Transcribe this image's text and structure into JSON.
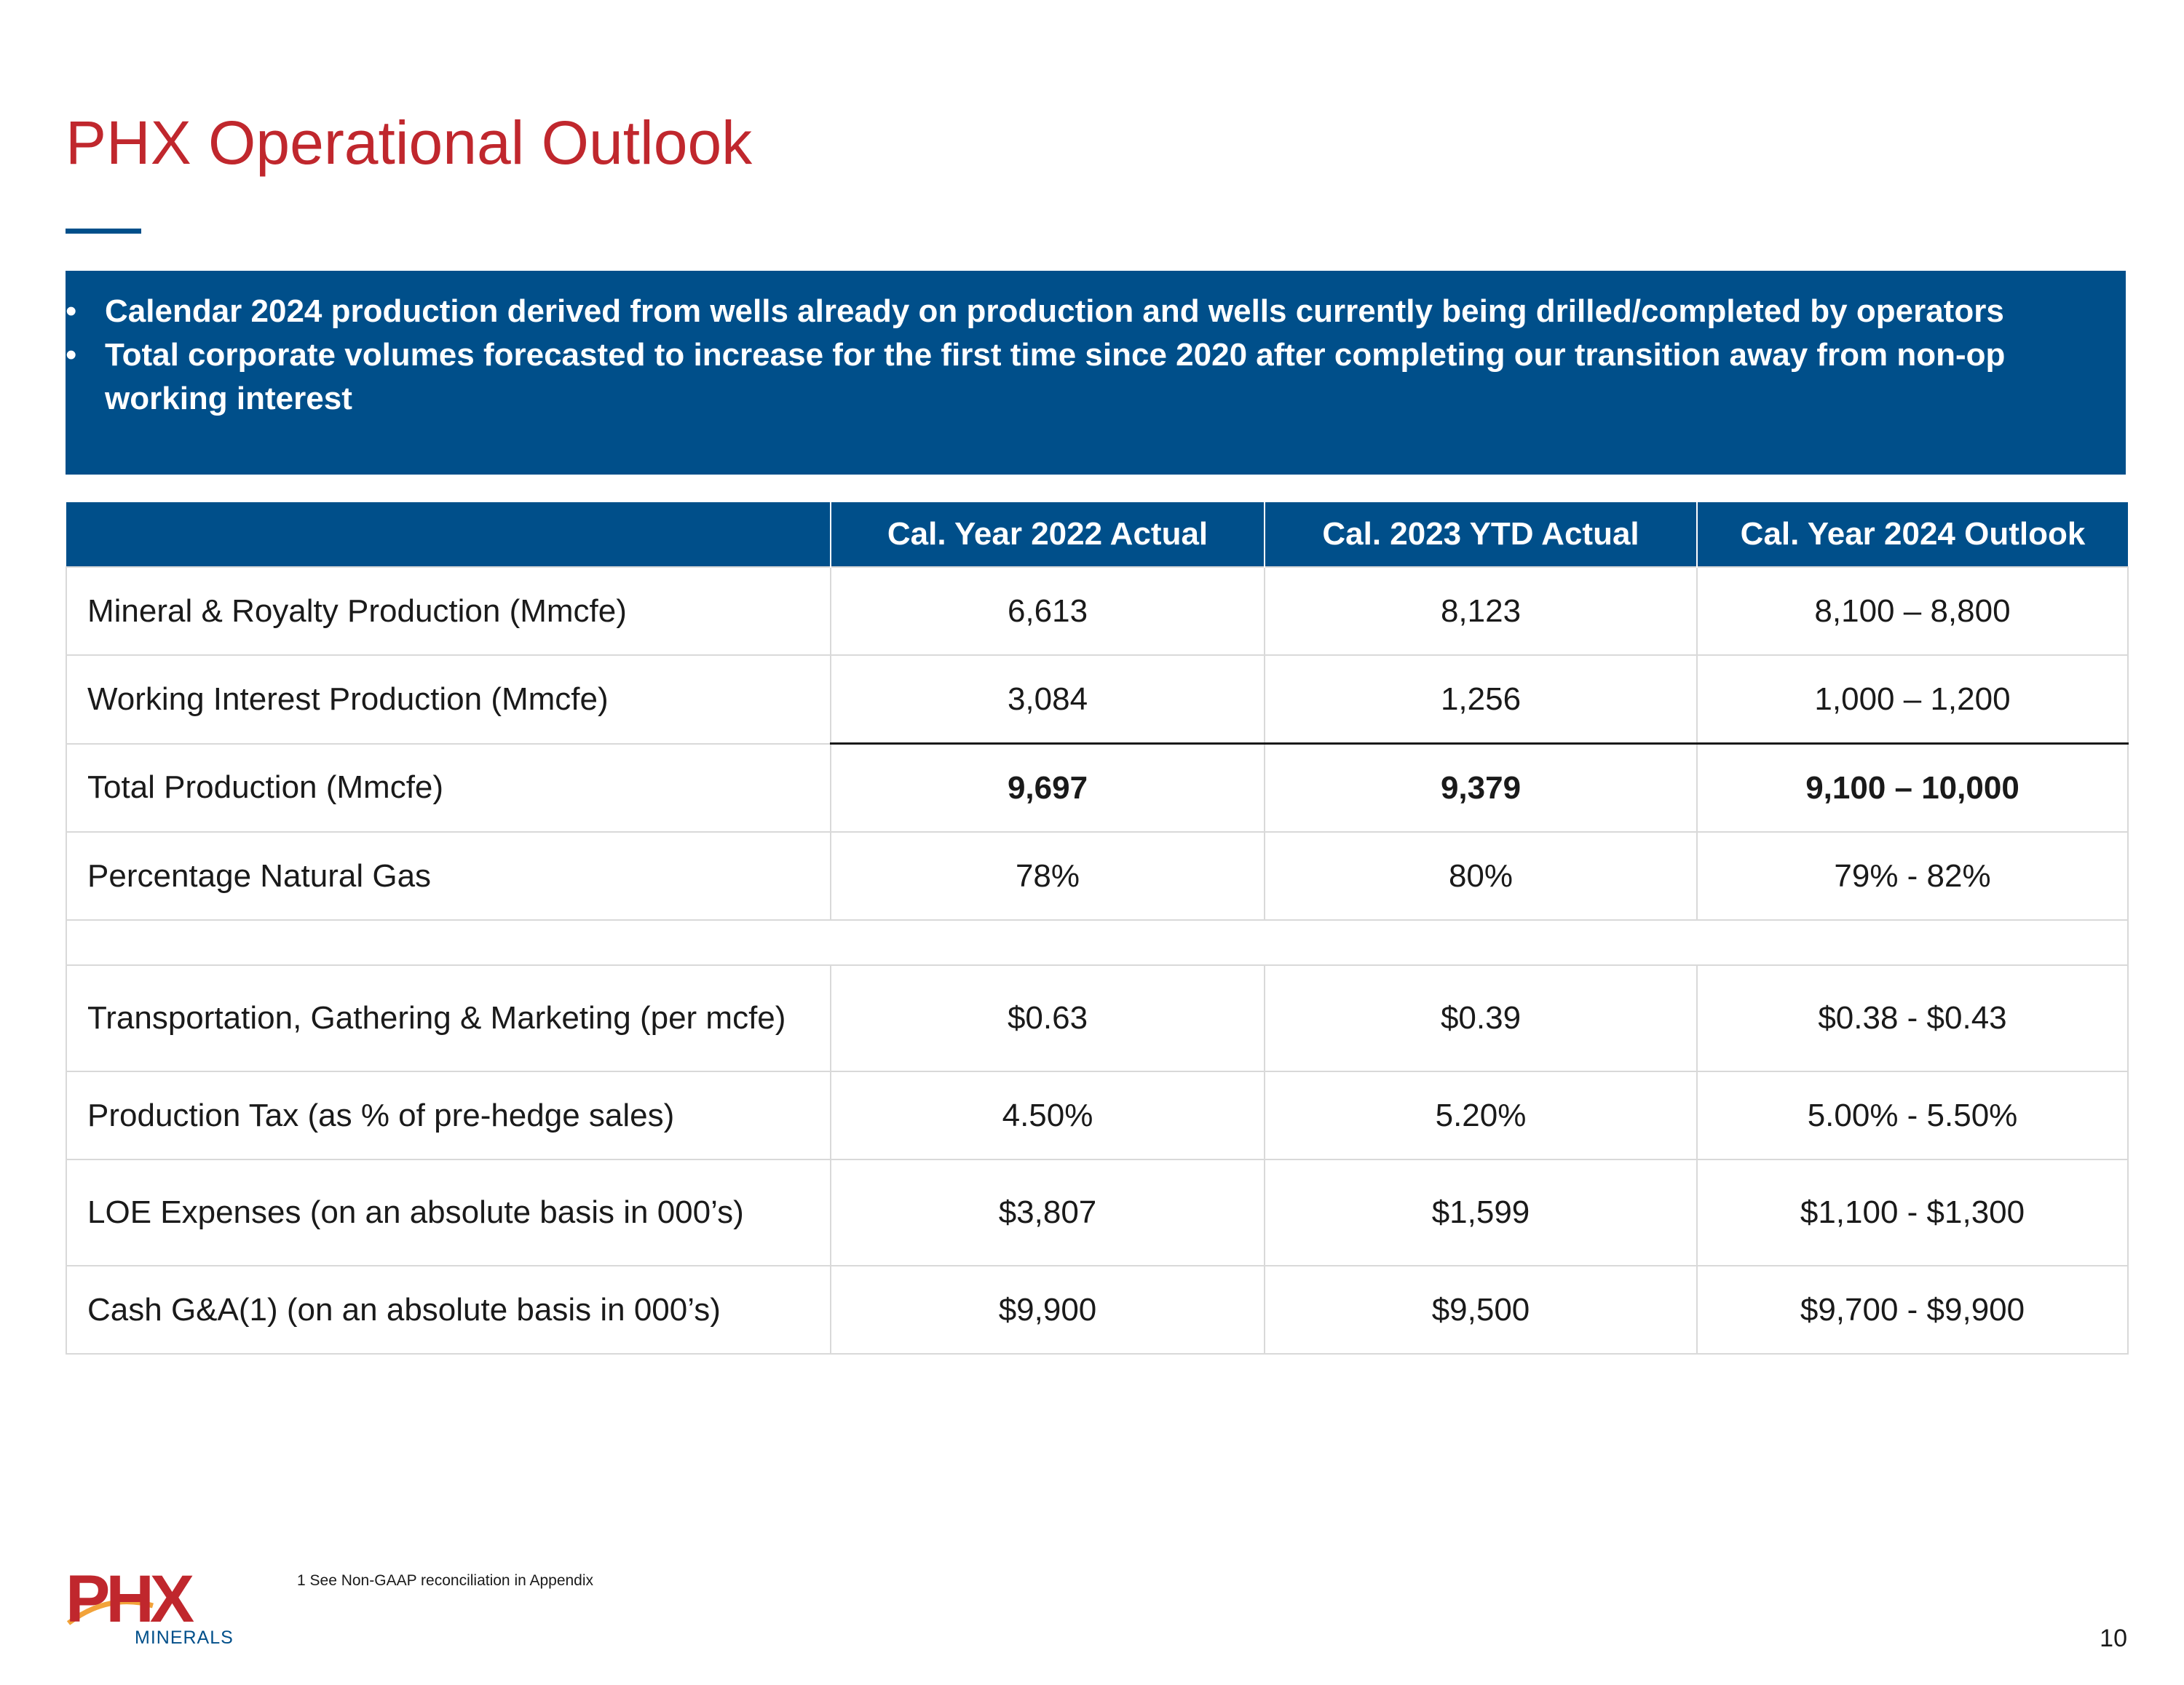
{
  "slide": {
    "title": "PHX Operational Outlook",
    "page_number": "10",
    "footnote": "1 See Non-GAAP reconciliation in Appendix"
  },
  "banner": {
    "bullet_char": "•",
    "bullets": [
      "Calendar 2024 production derived from wells already on production and wells currently being drilled/completed by operators",
      "Total corporate volumes forecasted to increase for the first time since 2020 after completing our transition away from non-op working interest"
    ]
  },
  "table": {
    "headers": [
      "",
      "Cal. Year 2022 Actual",
      "Cal. 2023 YTD Actual",
      "Cal. Year 2024 Outlook"
    ],
    "rows": [
      [
        "Mineral & Royalty Production (Mmcfe)",
        "6,613",
        "8,123",
        "8,100 – 8,800"
      ],
      [
        "Working Interest Production (Mmcfe)",
        "3,084",
        "1,256",
        "1,000 – 1,200"
      ],
      [
        "Total Production (Mmcfe)",
        "9,697",
        "9,379",
        "9,100 – 10,000"
      ],
      [
        "Percentage Natural Gas",
        "78%",
        "80%",
        "79% - 82%"
      ],
      [
        "Transportation, Gathering & Marketing (per mcfe)",
        "$0.63",
        "$0.39",
        "$0.38 - $0.43"
      ],
      [
        "Production Tax (as % of pre-hedge sales)",
        "4.50%",
        "5.20%",
        "5.00% - 5.50%"
      ],
      [
        "LOE Expenses (on an absolute basis in 000’s)",
        "$3,807",
        "$1,599",
        "$1,100 - $1,300"
      ],
      [
        "Cash G&A(1) (on an absolute basis in 000’s)",
        "$9,900",
        "$9,500",
        "$9,700 - $9,900"
      ]
    ]
  },
  "logo": {
    "wordmark": "PHX",
    "subtext": "MINERALS",
    "brand_red": "#c0272d",
    "brand_blue": "#004f8a",
    "accent_orange": "#f2a33a"
  }
}
